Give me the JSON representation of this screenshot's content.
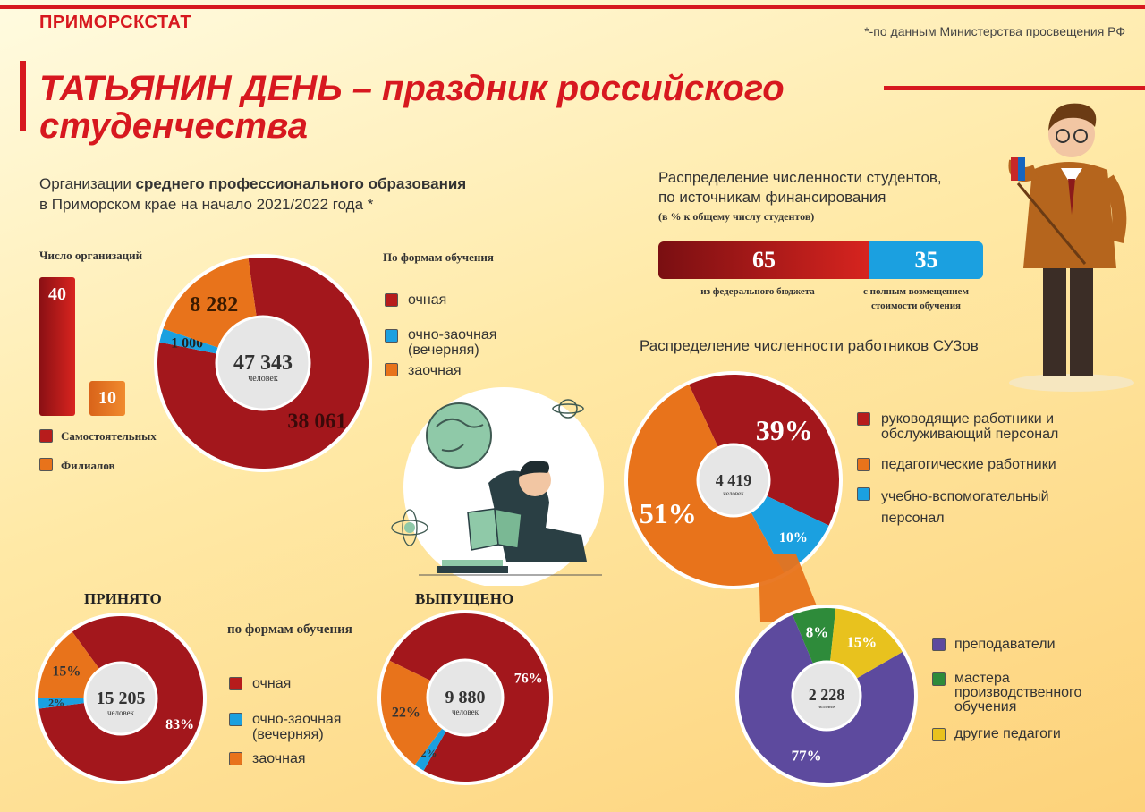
{
  "brand": "ПРИМОРСКСТАТ",
  "source_note": "*-по данным Министерства просвещения РФ",
  "title": "ТАТЬЯНИН ДЕНЬ – праздник российского студенчества",
  "subtitle": {
    "pre": "Организации ",
    "bold": "среднего профессионального образования",
    "line2": "в Приморском крае на начало 2021/2022 года  *"
  },
  "colors": {
    "red": "#b71c1c",
    "blue": "#1ba0e0",
    "orange": "#e8731b",
    "purple": "#5d4a9e",
    "green": "#2e8b3a",
    "yellow": "#e8c21e"
  },
  "orgs": {
    "heading": "Число организаций",
    "legend_independent": "Самостоятельных",
    "legend_branches": "Филиалов"
  },
  "forms_legend": {
    "heading": "По формам обучения",
    "full_time": "очная",
    "part_time": "очно-заочная (вечерняя)",
    "distance": "заочная"
  },
  "students_donut": {
    "total": "47 343",
    "unit": "человек"
  },
  "funding": {
    "title_line1": "Распределение численности студентов,",
    "title_line2": "по источникам финансирования",
    "note": "(в % к общему числу студентов)",
    "federal_caption": "из федерального бюджета",
    "paid_caption": "с полным возмещением стоимости обучения"
  },
  "staff": {
    "title": "Распределение численности работников СУЗов",
    "total": "4 419",
    "unit": "человек",
    "legend_mgmt": "руководящие работники и обслуживающий персонал",
    "legend_ped": "педагогические работники",
    "legend_aux": "учебно-вспомогательный персонал"
  },
  "ped": {
    "total": "2 228",
    "unit": "человек",
    "legend_teachers": "преподаватели",
    "legend_masters": "мастера производственного обучения",
    "legend_other": "другие педагоги"
  },
  "admitted": {
    "title": "ПРИНЯТО",
    "total": "15 205",
    "unit": "человек"
  },
  "graduated": {
    "title": "ВЫПУЩЕНО",
    "total": "9 880",
    "unit": "человек"
  },
  "bottom_forms_legend": {
    "heading": "по формам обучения",
    "full_time": "очная",
    "part_time": "очно-заочная (вечерняя)",
    "distance": "заочная"
  },
  "chart_data": [
    {
      "type": "bar",
      "categories": [
        "Самостоятельных",
        "Филиалов"
      ],
      "values": [
        40,
        10
      ],
      "labels": [
        "40",
        "10"
      ],
      "title": "Число организаций"
    },
    {
      "type": "pie",
      "categories": [
        "очная",
        "очно-заочная (вечерняя)",
        "заочная"
      ],
      "values": [
        38061,
        1000,
        8282
      ],
      "labels": [
        "38 061",
        "1 000",
        "8 282"
      ],
      "total": "47 343"
    },
    {
      "type": "bar",
      "title": "Распределение численности студентов, по источникам финансирования",
      "categories": [
        "из федерального бюджета",
        "с полным возмещением стоимости обучения"
      ],
      "values": [
        65,
        35
      ],
      "labels": [
        "65",
        "35"
      ]
    },
    {
      "type": "pie",
      "title": "Распределение численности работников СУЗов",
      "categories": [
        "руководящие работники и обслуживающий персонал",
        "педагогические работники",
        "учебно-вспомогательный персонал"
      ],
      "values": [
        39,
        51,
        10
      ],
      "labels": [
        "39%",
        "51%",
        "10%"
      ],
      "total": "4 419"
    },
    {
      "type": "pie",
      "categories": [
        "преподаватели",
        "мастера производственного обучения",
        "другие педагоги"
      ],
      "values": [
        77,
        8,
        15
      ],
      "labels": [
        "77%",
        "8%",
        "15%"
      ],
      "total": "2 228"
    },
    {
      "type": "pie",
      "title": "ПРИНЯТО",
      "categories": [
        "очная",
        "очно-заочная (вечерняя)",
        "заочная"
      ],
      "values": [
        83,
        2,
        15
      ],
      "labels": [
        "83%",
        "2%",
        "15%"
      ],
      "total": "15 205"
    },
    {
      "type": "pie",
      "title": "ВЫПУЩЕНО",
      "categories": [
        "очная",
        "очно-заочная (вечерняя)",
        "заочная"
      ],
      "values": [
        76,
        2,
        22
      ],
      "labels": [
        "76%",
        "2%",
        "22%"
      ],
      "total": "9 880"
    }
  ]
}
